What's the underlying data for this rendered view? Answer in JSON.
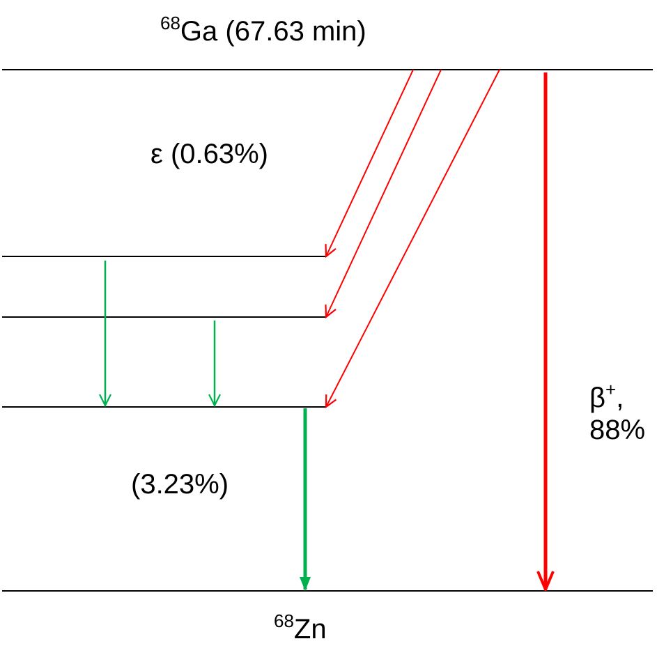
{
  "parent": {
    "mass_number": "68",
    "symbol": "Ga",
    "half_life": "(67.63 min)"
  },
  "daughter": {
    "mass_number": "68",
    "symbol": "Zn"
  },
  "electron_capture": {
    "label": "ε (0.63%)"
  },
  "gamma": {
    "label": "(3.23%)"
  },
  "beta_plus": {
    "symbol": "β",
    "charge": "+",
    "separator": ",",
    "percent": "88%"
  },
  "colors": {
    "level_line": "#000000",
    "decay_arrow": "#ff0000",
    "gamma_arrow": "#00b050",
    "text": "#000000"
  }
}
